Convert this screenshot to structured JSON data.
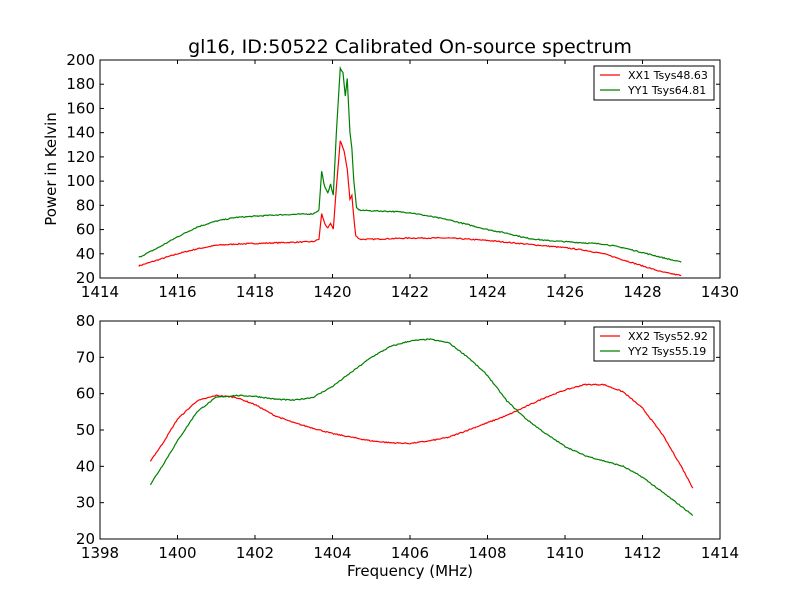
{
  "chart_data": [
    {
      "type": "line",
      "title": "gl16, ID:50522 Calibrated On-source spectrum",
      "xlabel": "",
      "ylabel": "Power in Kelvin",
      "xlim": [
        1414,
        1430
      ],
      "ylim": [
        20,
        200
      ],
      "xticks": [
        1414,
        1416,
        1418,
        1420,
        1422,
        1424,
        1426,
        1428,
        1430
      ],
      "yticks": [
        20,
        40,
        60,
        80,
        100,
        120,
        140,
        160,
        180,
        200
      ],
      "grid": false,
      "legend_position": "top-right",
      "series": [
        {
          "name": "XX1 Tsys48.63",
          "color": "#ff0000",
          "points": [
            [
              1415.0,
              30
            ],
            [
              1415.5,
              35
            ],
            [
              1416.0,
              40
            ],
            [
              1416.5,
              44
            ],
            [
              1417.0,
              47
            ],
            [
              1417.5,
              48
            ],
            [
              1418.0,
              48.5
            ],
            [
              1418.5,
              49
            ],
            [
              1419.0,
              49.5
            ],
            [
              1419.5,
              50
            ],
            [
              1419.65,
              52
            ],
            [
              1419.72,
              73
            ],
            [
              1419.8,
              65
            ],
            [
              1419.88,
              61
            ],
            [
              1419.95,
              65
            ],
            [
              1420.02,
              60
            ],
            [
              1420.1,
              95
            ],
            [
              1420.2,
              133
            ],
            [
              1420.3,
              125
            ],
            [
              1420.38,
              110
            ],
            [
              1420.45,
              85
            ],
            [
              1420.5,
              88
            ],
            [
              1420.55,
              70
            ],
            [
              1420.6,
              55
            ],
            [
              1420.7,
              52
            ],
            [
              1421.0,
              52
            ],
            [
              1422.0,
              53
            ],
            [
              1423.0,
              53
            ],
            [
              1424.0,
              51
            ],
            [
              1425.0,
              48
            ],
            [
              1426.0,
              45
            ],
            [
              1426.5,
              43
            ],
            [
              1427.0,
              40
            ],
            [
              1427.5,
              35
            ],
            [
              1428.0,
              30
            ],
            [
              1428.5,
              25
            ],
            [
              1429.0,
              22
            ]
          ]
        },
        {
          "name": "YY1 Tsys64.81",
          "color": "#008000",
          "points": [
            [
              1415.0,
              37
            ],
            [
              1415.5,
              45
            ],
            [
              1416.0,
              54
            ],
            [
              1416.5,
              62
            ],
            [
              1417.0,
              67
            ],
            [
              1417.5,
              70
            ],
            [
              1418.0,
              71
            ],
            [
              1418.5,
              72
            ],
            [
              1419.0,
              72.5
            ],
            [
              1419.5,
              73
            ],
            [
              1419.65,
              76
            ],
            [
              1419.72,
              108
            ],
            [
              1419.8,
              95
            ],
            [
              1419.88,
              90
            ],
            [
              1419.95,
              98
            ],
            [
              1420.02,
              88
            ],
            [
              1420.1,
              140
            ],
            [
              1420.2,
              193
            ],
            [
              1420.27,
              190
            ],
            [
              1420.33,
              170
            ],
            [
              1420.38,
              185
            ],
            [
              1420.45,
              140
            ],
            [
              1420.5,
              127
            ],
            [
              1420.55,
              100
            ],
            [
              1420.62,
              78
            ],
            [
              1420.7,
              76
            ],
            [
              1421.0,
              75.5
            ],
            [
              1421.5,
              75
            ],
            [
              1422.0,
              74
            ],
            [
              1422.5,
              71
            ],
            [
              1423.0,
              68
            ],
            [
              1423.5,
              64
            ],
            [
              1424.0,
              60
            ],
            [
              1424.5,
              57
            ],
            [
              1425.0,
              53
            ],
            [
              1425.5,
              51
            ],
            [
              1426.0,
              50
            ],
            [
              1426.5,
              49
            ],
            [
              1427.0,
              48
            ],
            [
              1427.5,
              45
            ],
            [
              1428.0,
              41
            ],
            [
              1428.5,
              37
            ],
            [
              1429.0,
              33
            ]
          ]
        }
      ]
    },
    {
      "type": "line",
      "title": "",
      "xlabel": "Frequency (MHz)",
      "ylabel": "",
      "xlim": [
        1398,
        1414
      ],
      "ylim": [
        20,
        80
      ],
      "xticks": [
        1398,
        1400,
        1402,
        1404,
        1406,
        1408,
        1410,
        1412,
        1414
      ],
      "yticks": [
        20,
        30,
        40,
        50,
        60,
        70,
        80
      ],
      "grid": false,
      "legend_position": "top-right",
      "series": [
        {
          "name": "XX2 Tsys52.92",
          "color": "#ff0000",
          "points": [
            [
              1399.3,
              41.5
            ],
            [
              1399.6,
              46
            ],
            [
              1400.0,
              53
            ],
            [
              1400.5,
              58
            ],
            [
              1401.0,
              59.5
            ],
            [
              1401.5,
              59
            ],
            [
              1402.0,
              57
            ],
            [
              1402.5,
              54
            ],
            [
              1403.0,
              52
            ],
            [
              1403.5,
              50.5
            ],
            [
              1404.0,
              49
            ],
            [
              1404.5,
              48
            ],
            [
              1405.0,
              47
            ],
            [
              1405.5,
              46.5
            ],
            [
              1406.0,
              46.3
            ],
            [
              1406.5,
              47
            ],
            [
              1407.0,
              48
            ],
            [
              1407.5,
              50
            ],
            [
              1408.0,
              52
            ],
            [
              1408.5,
              54
            ],
            [
              1409.0,
              56.5
            ],
            [
              1409.5,
              59
            ],
            [
              1410.0,
              61
            ],
            [
              1410.5,
              62.5
            ],
            [
              1411.0,
              62.5
            ],
            [
              1411.5,
              60.5
            ],
            [
              1412.0,
              56
            ],
            [
              1412.5,
              49
            ],
            [
              1413.0,
              40
            ],
            [
              1413.3,
              34
            ]
          ]
        },
        {
          "name": "YY2 Tsys55.19",
          "color": "#008000",
          "points": [
            [
              1399.3,
              35
            ],
            [
              1399.6,
              40
            ],
            [
              1400.0,
              47
            ],
            [
              1400.5,
              55
            ],
            [
              1401.0,
              59
            ],
            [
              1401.5,
              59.5
            ],
            [
              1402.0,
              59.3
            ],
            [
              1402.5,
              58.5
            ],
            [
              1403.0,
              58.2
            ],
            [
              1403.5,
              59
            ],
            [
              1404.0,
              62
            ],
            [
              1404.5,
              66
            ],
            [
              1405.0,
              70
            ],
            [
              1405.5,
              73
            ],
            [
              1406.0,
              74.5
            ],
            [
              1406.5,
              75
            ],
            [
              1407.0,
              74
            ],
            [
              1407.5,
              70
            ],
            [
              1408.0,
              65
            ],
            [
              1408.5,
              58
            ],
            [
              1409.0,
              53
            ],
            [
              1409.5,
              49
            ],
            [
              1410.0,
              45.5
            ],
            [
              1410.5,
              43
            ],
            [
              1411.0,
              41.5
            ],
            [
              1411.5,
              40
            ],
            [
              1412.0,
              37
            ],
            [
              1412.5,
              33
            ],
            [
              1413.0,
              29
            ],
            [
              1413.3,
              26.5
            ]
          ]
        }
      ]
    }
  ]
}
